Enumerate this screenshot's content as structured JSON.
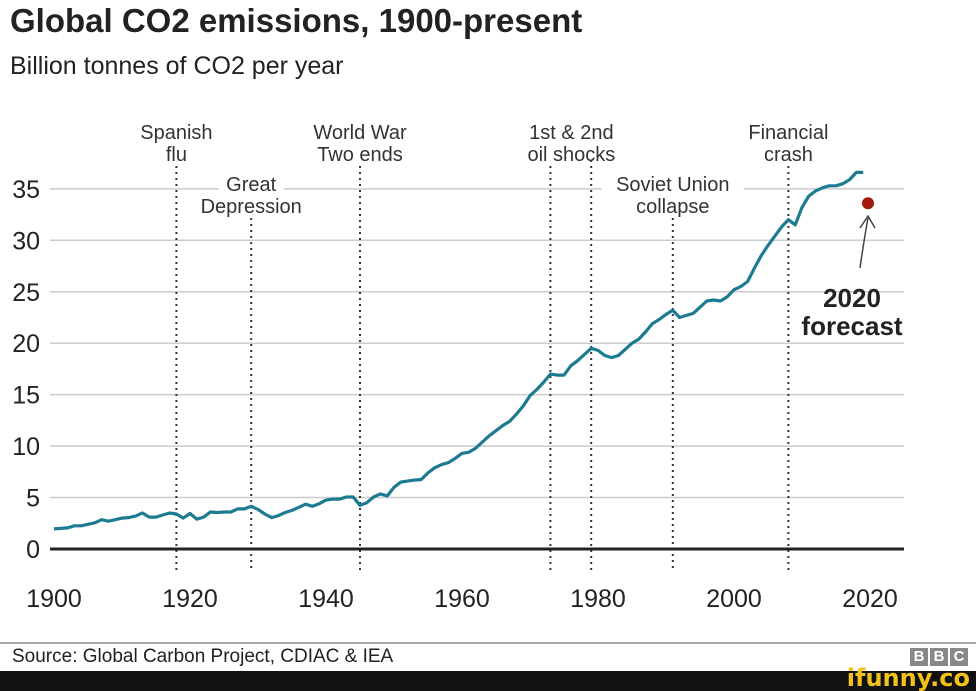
{
  "title": "Global CO2 emissions, 1900-present",
  "subtitle": "Billion tonnes of CO2 per year",
  "source": "Source:  Global Carbon Project, CDIAC & IEA",
  "logo": [
    "B",
    "B",
    "C"
  ],
  "watermark": "ifunny.co",
  "colors": {
    "line": "#1d7b91",
    "forecast": "#a31a0c",
    "axis": "#222222",
    "grid": "#cccccc"
  },
  "chart_data": {
    "type": "line",
    "title": "Global CO2 emissions, 1900-present",
    "ylabel": "Billion tonnes of CO2 per year",
    "xlim": [
      1900,
      2020
    ],
    "ylim": [
      0,
      35
    ],
    "grid": true,
    "x_ticks": [
      "1900",
      "1920",
      "1940",
      "1960",
      "1980",
      "2000",
      "2020"
    ],
    "y_ticks": [
      "0",
      "5",
      "10",
      "15",
      "20",
      "25",
      "30",
      "35"
    ],
    "x": [
      1900,
      1901,
      1902,
      1903,
      1904,
      1905,
      1906,
      1907,
      1908,
      1909,
      1910,
      1911,
      1912,
      1913,
      1914,
      1915,
      1916,
      1917,
      1918,
      1919,
      1920,
      1921,
      1922,
      1923,
      1924,
      1925,
      1926,
      1927,
      1928,
      1929,
      1930,
      1931,
      1932,
      1933,
      1934,
      1935,
      1936,
      1937,
      1938,
      1939,
      1940,
      1941,
      1942,
      1943,
      1944,
      1945,
      1946,
      1947,
      1948,
      1949,
      1950,
      1951,
      1952,
      1953,
      1954,
      1955,
      1956,
      1957,
      1958,
      1959,
      1960,
      1961,
      1962,
      1963,
      1964,
      1965,
      1966,
      1967,
      1968,
      1969,
      1970,
      1971,
      1972,
      1973,
      1974,
      1975,
      1976,
      1977,
      1978,
      1979,
      1980,
      1981,
      1982,
      1983,
      1984,
      1985,
      1986,
      1987,
      1988,
      1989,
      1990,
      1991,
      1992,
      1993,
      1994,
      1995,
      1996,
      1997,
      1998,
      1999,
      2000,
      2001,
      2002,
      2003,
      2004,
      2005,
      2006,
      2007,
      2008,
      2009,
      2010,
      2011,
      2012,
      2013,
      2014,
      2015,
      2016,
      2017,
      2018,
      2019
    ],
    "y": [
      1.95,
      2.0,
      2.05,
      2.25,
      2.25,
      2.4,
      2.55,
      2.85,
      2.7,
      2.85,
      3.0,
      3.05,
      3.2,
      3.5,
      3.1,
      3.1,
      3.3,
      3.5,
      3.4,
      3.0,
      3.45,
      2.9,
      3.1,
      3.6,
      3.55,
      3.6,
      3.6,
      3.9,
      3.9,
      4.15,
      3.85,
      3.4,
      3.05,
      3.25,
      3.55,
      3.75,
      4.05,
      4.35,
      4.15,
      4.4,
      4.75,
      4.85,
      4.85,
      5.05,
      5.05,
      4.25,
      4.5,
      5.05,
      5.35,
      5.15,
      6.0,
      6.5,
      6.6,
      6.7,
      6.75,
      7.4,
      7.9,
      8.2,
      8.4,
      8.8,
      9.3,
      9.4,
      9.8,
      10.4,
      11.0,
      11.5,
      12.0,
      12.4,
      13.1,
      13.9,
      14.9,
      15.5,
      16.2,
      17.0,
      16.9,
      16.9,
      17.8,
      18.3,
      18.9,
      19.5,
      19.3,
      18.8,
      18.6,
      18.8,
      19.4,
      20.0,
      20.4,
      21.1,
      21.9,
      22.3,
      22.8,
      23.2,
      22.5,
      22.7,
      22.9,
      23.5,
      24.1,
      24.2,
      24.1,
      24.5,
      25.2,
      25.5,
      26.0,
      27.3,
      28.5,
      29.5,
      30.4,
      31.3,
      32.0,
      31.5,
      33.2,
      34.3,
      34.8,
      35.1,
      35.3,
      35.3,
      35.5,
      35.9,
      36.6,
      36.6
    ],
    "forecast": {
      "x": 2020,
      "y": 33.6,
      "label": [
        "2020",
        "forecast"
      ]
    },
    "annotations": [
      {
        "year": 1918,
        "lines": [
          "Spanish",
          "flu"
        ]
      },
      {
        "year": 1929,
        "lines": [
          "Great",
          "Depression"
        ]
      },
      {
        "year": 1945,
        "lines": [
          "World War",
          "Two ends"
        ]
      },
      {
        "year": 1973,
        "lines": [
          "1st & 2nd",
          "oil shocks"
        ]
      },
      {
        "year": 1979,
        "lines": []
      },
      {
        "year": 1991,
        "lines": [
          "Soviet Union",
          "collapse"
        ]
      },
      {
        "year": 2008,
        "lines": [
          "Financial",
          "crash"
        ]
      }
    ]
  }
}
